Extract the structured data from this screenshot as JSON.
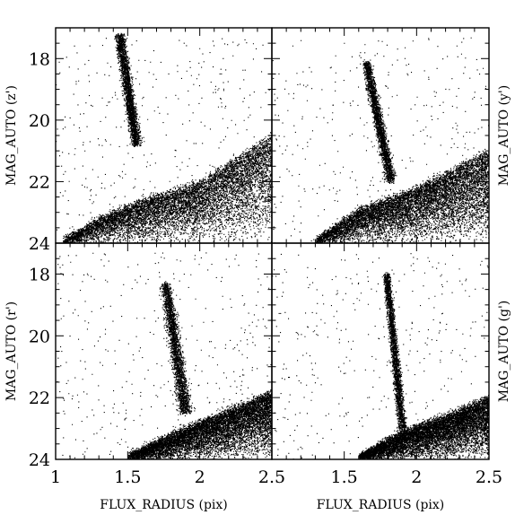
{
  "chart_data": [
    {
      "type": "scatter",
      "panel": "top-left",
      "ylabel": "MAG_AUTO (z')",
      "ylabel_side": "left",
      "xlabel": "",
      "xlim": [
        1,
        2.5
      ],
      "ylim": [
        24,
        17
      ],
      "yticks": [
        "18",
        "20",
        "22",
        "24"
      ],
      "xticks": [],
      "locus": {
        "x": [
          1.38,
          1.5,
          1.5,
          1.62
        ],
        "y": [
          17.2,
          17.2,
          20.8,
          20.8
        ]
      },
      "galaxies": {
        "x": [
          1.05,
          1.3,
          1.6,
          2.0,
          2.5
        ],
        "y_bright": [
          23.9,
          23.2,
          22.6,
          22.0,
          20.5
        ]
      }
    },
    {
      "type": "scatter",
      "panel": "top-right",
      "ylabel": "MAG_AUTO (y')",
      "ylabel_side": "right",
      "xlabel": "",
      "xlim": [
        1,
        2.5
      ],
      "ylim": [
        24,
        17
      ],
      "yticks": [],
      "xticks": [],
      "locus": {
        "x": [
          1.6,
          1.7,
          1.76,
          1.88
        ],
        "y": [
          18.1,
          18.1,
          22.0,
          22.0
        ]
      },
      "galaxies": {
        "x": [
          1.3,
          1.6,
          2.0,
          2.5
        ],
        "y_bright": [
          23.9,
          22.9,
          22.2,
          21.0
        ]
      }
    },
    {
      "type": "scatter",
      "panel": "bottom-left",
      "ylabel": "MAG_AUTO (r')",
      "ylabel_side": "left",
      "xlabel": "FLUX_RADIUS (pix)",
      "xlim": [
        1,
        2.5
      ],
      "ylim": [
        24,
        17
      ],
      "yticks": [
        "18",
        "20",
        "22",
        "24"
      ],
      "xticks": [
        "1",
        "1.5",
        "2",
        "2.5"
      ],
      "locus": {
        "x": [
          1.7,
          1.82,
          1.82,
          1.98
        ],
        "y": [
          18.3,
          18.3,
          22.5,
          22.5
        ]
      },
      "galaxies": {
        "x": [
          1.5,
          1.8,
          2.1,
          2.5
        ],
        "y_bright": [
          23.9,
          23.2,
          22.6,
          21.8
        ]
      }
    },
    {
      "type": "scatter",
      "panel": "bottom-right",
      "ylabel": "MAG_AUTO (g')",
      "ylabel_side": "right",
      "xlabel": "FLUX_RADIUS (pix)",
      "xlim": [
        1,
        2.5
      ],
      "ylim": [
        24,
        17
      ],
      "yticks": [],
      "xticks": [
        "1.5",
        "2",
        "2.5"
      ],
      "locus": {
        "x": [
          1.75,
          1.83,
          1.85,
          1.95
        ],
        "y": [
          18.0,
          18.0,
          23.0,
          23.0
        ]
      },
      "galaxies": {
        "x": [
          1.6,
          1.9,
          2.2,
          2.5
        ],
        "y_bright": [
          23.9,
          23.1,
          22.6,
          22.0
        ]
      }
    }
  ]
}
